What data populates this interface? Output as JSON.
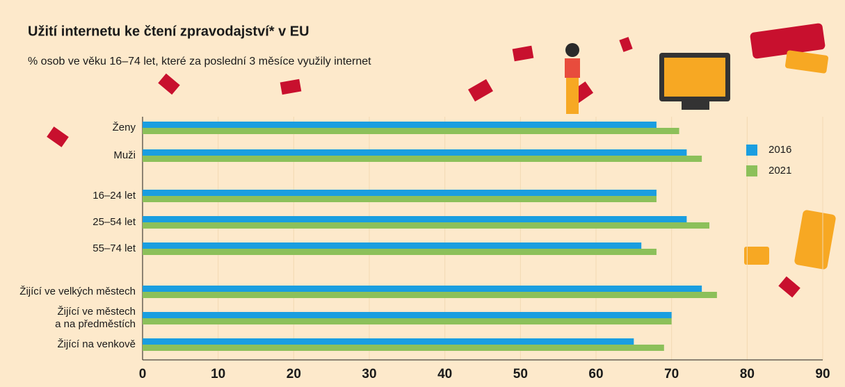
{
  "chart_data": {
    "type": "bar",
    "orientation": "horizontal",
    "title": "Užití internetu ke čtení zpravodajství* v EU",
    "subtitle": "% osob ve věku 16–74 let, které za poslední 3 měsíce využily internet",
    "categories": [
      "Ženy",
      "Muži",
      "16–24 let",
      "25–54 let",
      "55–74 let",
      "Žijící ve velkých městech",
      "Žijící ve městech\na na předměstích",
      "Žijící na venkově"
    ],
    "series": [
      {
        "name": "2016",
        "color": "#1a9ee0",
        "values": [
          68,
          72,
          68,
          72,
          66,
          74,
          70,
          65
        ]
      },
      {
        "name": "2021",
        "color": "#8cc05a",
        "values": [
          71,
          74,
          68,
          75,
          68,
          76,
          70,
          69
        ]
      }
    ],
    "xlim": [
      0,
      90
    ],
    "xticks": [
      0,
      10,
      20,
      30,
      40,
      50,
      60,
      70,
      80,
      90
    ],
    "grid": true
  }
}
